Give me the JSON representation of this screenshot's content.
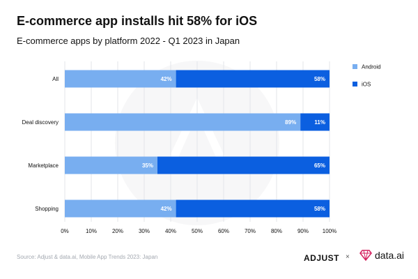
{
  "title": "E-commerce app installs hit 58% for iOS",
  "subtitle": "E-commerce apps by platform 2022 - Q1 2023 in Japan",
  "source": "Source: Adjust & data.ai, Mobile App Trends 2023: Japan",
  "brands": {
    "adjust": "ADJUST",
    "separator": "×",
    "dataai": "data.ai"
  },
  "colors": {
    "android": "#78aef0",
    "ios": "#0b5fe0",
    "label": "#ffffff",
    "text": "#111111",
    "grid": "#e3e6ea",
    "source": "#a3a8b0"
  },
  "chart_data": {
    "type": "bar",
    "orientation": "horizontal",
    "stacked": true,
    "title": "E-commerce app installs hit 58% for iOS",
    "subtitle": "E-commerce apps by platform 2022 - Q1 2023 in Japan",
    "categories": [
      "All",
      "Deal discovery",
      "Marketplace",
      "Shopping"
    ],
    "series": [
      {
        "name": "Android",
        "values": [
          42,
          89,
          35,
          42
        ],
        "color": "#78aef0"
      },
      {
        "name": "iOS",
        "values": [
          58,
          11,
          65,
          58
        ],
        "color": "#0b5fe0"
      }
    ],
    "value_labels": [
      [
        "42%",
        "89%",
        "35%",
        "42%"
      ],
      [
        "58%",
        "11%",
        "65%",
        "58%"
      ]
    ],
    "xlim": [
      0,
      100
    ],
    "xticks": [
      "0%",
      "10%",
      "20%",
      "30%",
      "40%",
      "50%",
      "60%",
      "70%",
      "80%",
      "90%",
      "100%"
    ],
    "grid": true,
    "legend_position": "right"
  }
}
